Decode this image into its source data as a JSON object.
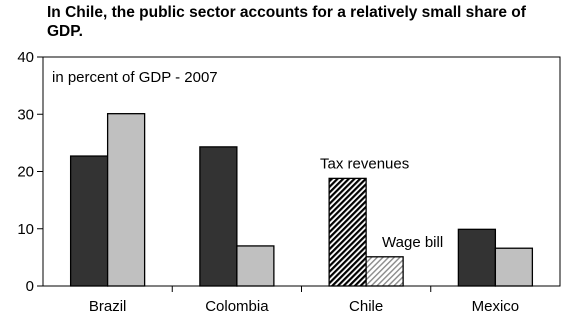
{
  "chart_data": {
    "type": "bar",
    "title": "In Chile, the public sector accounts for a relatively small share of GDP.",
    "annotation": "in percent of GDP - 2007",
    "categories": [
      "Brazil",
      "Colombia",
      "Chile",
      "Mexico"
    ],
    "series": [
      {
        "name": "Tax revenues",
        "values": [
          22.7,
          24.3,
          18.8,
          9.9
        ],
        "color": "#333333",
        "highlight_color": "hatched"
      },
      {
        "name": "Wage bill",
        "values": [
          30.1,
          7.0,
          5.1,
          6.6
        ],
        "color": "#c0c0c0",
        "highlight_color": "light-hatched"
      }
    ],
    "highlight_category": "Chile",
    "yticks": [
      0,
      10,
      20,
      30,
      40
    ],
    "ylim": [
      0,
      40
    ],
    "xlabel": "",
    "ylabel": "",
    "grid": false,
    "legend": "inline labels above Chile bars"
  }
}
